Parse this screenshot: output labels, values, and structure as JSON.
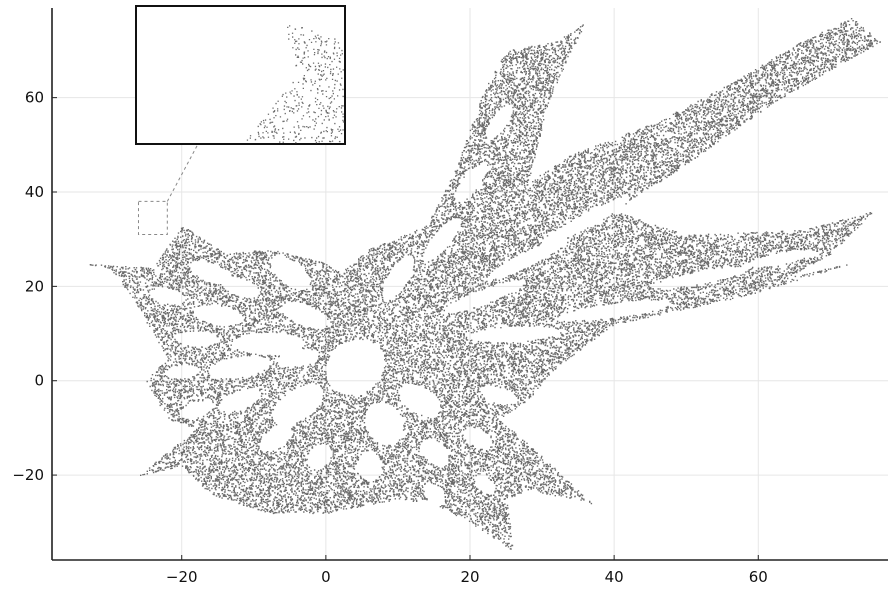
{
  "chart_data": {
    "type": "scatter",
    "title": "",
    "xlabel": "",
    "ylabel": "",
    "xlim": [
      -38,
      78
    ],
    "ylim": [
      -38,
      79
    ],
    "grid": true,
    "legend": "none",
    "x_ticks": [
      -20,
      0,
      20,
      40,
      60
    ],
    "y_ticks": [
      -20,
      0,
      20,
      40,
      60
    ],
    "x_tick_labels": [
      "−20",
      "0",
      "20",
      "40",
      "60"
    ],
    "y_tick_labels": [
      "−20",
      "0",
      "20",
      "40",
      "60"
    ],
    "series": [
      {
        "marker_color": "#6b6b6b",
        "regions": [
          {
            "kind": "body",
            "polygon": [
              [
                -35,
                25
              ],
              [
                -24,
                24
              ],
              [
                -20,
                33
              ],
              [
                -14,
                27
              ],
              [
                -8,
                28
              ],
              [
                0,
                25
              ],
              [
                2,
                23
              ],
              [
                6,
                28
              ],
              [
                14,
                33
              ],
              [
                18,
                45
              ],
              [
                22,
                62
              ],
              [
                25,
                70
              ],
              [
                32,
                72
              ],
              [
                36,
                76
              ],
              [
                31,
                60
              ],
              [
                28,
                42
              ],
              [
                34,
                48
              ],
              [
                46,
                55
              ],
              [
                56,
                63
              ],
              [
                66,
                72
              ],
              [
                73,
                77
              ],
              [
                77,
                72
              ],
              [
                62,
                59
              ],
              [
                50,
                46
              ],
              [
                40,
                36
              ],
              [
                50,
                31
              ],
              [
                66,
                32
              ],
              [
                76,
                36
              ],
              [
                70,
                27
              ],
              [
                64,
                22
              ],
              [
                73,
                25
              ],
              [
                58,
                18
              ],
              [
                40,
                12
              ],
              [
                32,
                3
              ],
              [
                28,
                -4
              ],
              [
                24,
                -8
              ],
              [
                30,
                -16
              ],
              [
                37,
                -26
              ],
              [
                28,
                -23
              ],
              [
                25,
                -25
              ],
              [
                26,
                -36
              ],
              [
                20,
                -30
              ],
              [
                15,
                -26
              ],
              [
                10,
                -25
              ],
              [
                0,
                -28
              ],
              [
                -8,
                -28
              ],
              [
                -16,
                -24
              ],
              [
                -20,
                -18
              ],
              [
                -26,
                -20
              ],
              [
                -18,
                -10
              ],
              [
                -22,
                -8
              ],
              [
                -25,
                0
              ],
              [
                -22,
                5
              ],
              [
                -24,
                10
              ],
              [
                -27,
                18
              ],
              [
                -30,
                24
              ]
            ]
          }
        ],
        "holes": [
          {
            "center": [
              -16,
              23
            ],
            "radii": [
              3.5,
              1.8
            ]
          },
          {
            "center": [
              -12,
              20
            ],
            "radii": [
              3.2,
              1.7
            ]
          },
          {
            "center": [
              -5,
              23
            ],
            "radii": [
              4.0,
              2.0
            ]
          },
          {
            "center": [
              -22,
              18
            ],
            "radii": [
              2.6,
              1.6
            ]
          },
          {
            "center": [
              -15,
              14
            ],
            "radii": [
              3.6,
              2.0
            ]
          },
          {
            "center": [
              -3,
              14
            ],
            "radii": [
              3.8,
              2.0
            ]
          },
          {
            "center": [
              -18,
              9
            ],
            "radii": [
              3.0,
              1.6
            ]
          },
          {
            "center": [
              -8,
              8
            ],
            "radii": [
              5.0,
              2.4
            ]
          },
          {
            "center": [
              -12,
              3
            ],
            "radii": [
              4.4,
              2.2
            ]
          },
          {
            "center": [
              -20,
              2
            ],
            "radii": [
              2.4,
              1.4
            ]
          },
          {
            "center": [
              -4,
              5
            ],
            "radii": [
              3.0,
              1.8
            ]
          },
          {
            "center": [
              -12,
              -4
            ],
            "radii": [
              3.4,
              1.8
            ]
          },
          {
            "center": [
              -4,
              -5
            ],
            "radii": [
              5.0,
              2.6
            ]
          },
          {
            "center": [
              -18,
              -6
            ],
            "radii": [
              2.6,
              1.5
            ]
          },
          {
            "center": [
              -7,
              -12
            ],
            "radii": [
              3.2,
              1.7
            ]
          },
          {
            "center": [
              -1,
              -16
            ],
            "radii": [
              2.8,
              1.6
            ]
          },
          {
            "center": [
              4,
              3
            ],
            "radii": [
              6.0,
              4.0
            ]
          },
          {
            "center": [
              8,
              -9
            ],
            "radii": [
              4.6,
              2.6
            ]
          },
          {
            "center": [
              13,
              -4
            ],
            "radii": [
              3.8,
              2.3
            ]
          },
          {
            "center": [
              6,
              -18
            ],
            "radii": [
              3.2,
              1.7
            ]
          },
          {
            "center": [
              15,
              -15
            ],
            "radii": [
              3.0,
              1.7
            ]
          },
          {
            "center": [
              21,
              -12
            ],
            "radii": [
              2.6,
              1.6
            ]
          },
          {
            "center": [
              15,
              -24
            ],
            "radii": [
              2.4,
              1.3
            ]
          },
          {
            "center": [
              22,
              -22
            ],
            "radii": [
              2.0,
              1.2
            ]
          },
          {
            "center": [
              24,
              -3
            ],
            "radii": [
              2.8,
              1.6
            ]
          },
          {
            "center": [
              10,
              22
            ],
            "radii": [
              5.0,
              1.5
            ]
          },
          {
            "center": [
              16,
              30
            ],
            "radii": [
              5.2,
              1.4
            ]
          },
          {
            "center": [
              20,
              42
            ],
            "radii": [
              4.4,
              1.3
            ]
          },
          {
            "center": [
              24,
              55
            ],
            "radii": [
              4.0,
              1.2
            ]
          },
          {
            "center": [
              22,
              18
            ],
            "radii": [
              6.5,
              1.4
            ]
          },
          {
            "center": [
              28,
              26
            ],
            "radii": [
              7.0,
              1.4
            ]
          },
          {
            "center": [
              36,
              34
            ],
            "radii": [
              8.0,
              1.3
            ]
          },
          {
            "center": [
              48,
              42
            ],
            "radii": [
              7.5,
              1.3
            ]
          },
          {
            "center": [
              58,
              52
            ],
            "radii": [
              6.0,
              1.2
            ]
          },
          {
            "center": [
              26,
              10
            ],
            "radii": [
              6.5,
              1.6
            ]
          },
          {
            "center": [
              40,
              15
            ],
            "radii": [
              8.0,
              1.5
            ]
          },
          {
            "center": [
              52,
              22
            ],
            "radii": [
              7.0,
              1.3
            ]
          },
          {
            "center": [
              63,
              26
            ],
            "radii": [
              5.0,
              1.2
            ]
          }
        ]
      }
    ],
    "inset": {
      "source_xlim": [
        -26,
        -22
      ],
      "source_ylim": [
        31,
        38
      ]
    }
  }
}
